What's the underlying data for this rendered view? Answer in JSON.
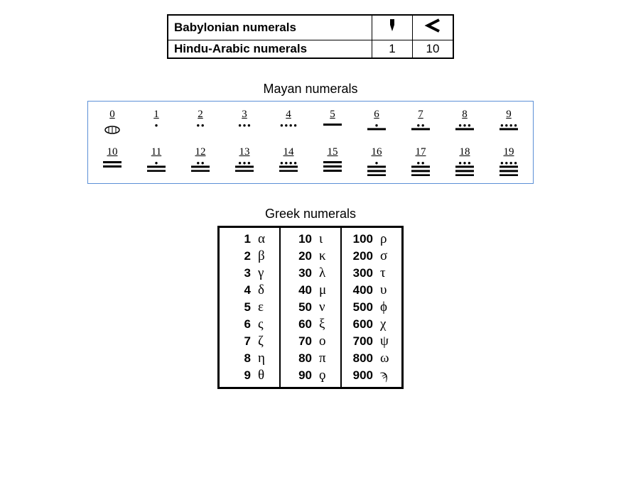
{
  "babylonian": {
    "rows": [
      {
        "label": "Babylonian numerals",
        "c1": "sym1",
        "c2": "sym10"
      },
      {
        "label": "Hindu-Arabic numerals",
        "c1": "1",
        "c2": "10"
      }
    ],
    "border_color": "#000000",
    "label_font_weight": "bold",
    "font_size_label": 17,
    "font_size_symbol": 22
  },
  "mayan": {
    "title": "Mayan numerals",
    "border_color": "#5b8fd6",
    "title_fontsize": 18,
    "number_fontsize": 15,
    "glyph_stroke": "#000000",
    "cells": [
      {
        "n": "0",
        "dots": 0,
        "bars": 0,
        "shell": true
      },
      {
        "n": "1",
        "dots": 1,
        "bars": 0
      },
      {
        "n": "2",
        "dots": 2,
        "bars": 0
      },
      {
        "n": "3",
        "dots": 3,
        "bars": 0
      },
      {
        "n": "4",
        "dots": 4,
        "bars": 0
      },
      {
        "n": "5",
        "dots": 0,
        "bars": 1
      },
      {
        "n": "6",
        "dots": 1,
        "bars": 1
      },
      {
        "n": "7",
        "dots": 2,
        "bars": 1
      },
      {
        "n": "8",
        "dots": 3,
        "bars": 1
      },
      {
        "n": "9",
        "dots": 4,
        "bars": 1
      },
      {
        "n": "10",
        "dots": 0,
        "bars": 2
      },
      {
        "n": "11",
        "dots": 1,
        "bars": 2
      },
      {
        "n": "12",
        "dots": 2,
        "bars": 2
      },
      {
        "n": "13",
        "dots": 3,
        "bars": 2
      },
      {
        "n": "14",
        "dots": 4,
        "bars": 2
      },
      {
        "n": "15",
        "dots": 0,
        "bars": 3
      },
      {
        "n": "16",
        "dots": 1,
        "bars": 3
      },
      {
        "n": "17",
        "dots": 2,
        "bars": 3
      },
      {
        "n": "18",
        "dots": 3,
        "bars": 3
      },
      {
        "n": "19",
        "dots": 4,
        "bars": 3
      }
    ]
  },
  "greek": {
    "title": "Greek numerals",
    "border_color": "#000000",
    "num_font_weight": "bold",
    "num_fontsize": 17,
    "letter_fontsize": 19,
    "columns": [
      [
        {
          "n": "1",
          "g": "α"
        },
        {
          "n": "2",
          "g": "β"
        },
        {
          "n": "3",
          "g": "γ"
        },
        {
          "n": "4",
          "g": "δ"
        },
        {
          "n": "5",
          "g": "ε"
        },
        {
          "n": "6",
          "g": "ς"
        },
        {
          "n": "7",
          "g": "ζ"
        },
        {
          "n": "8",
          "g": "η"
        },
        {
          "n": "9",
          "g": "θ"
        }
      ],
      [
        {
          "n": "10",
          "g": "ι"
        },
        {
          "n": "20",
          "g": "κ"
        },
        {
          "n": "30",
          "g": "λ"
        },
        {
          "n": "40",
          "g": "μ"
        },
        {
          "n": "50",
          "g": "ν"
        },
        {
          "n": "60",
          "g": "ξ"
        },
        {
          "n": "70",
          "g": "ο"
        },
        {
          "n": "80",
          "g": "π"
        },
        {
          "n": "90",
          "g": "ϙ"
        }
      ],
      [
        {
          "n": "100",
          "g": "ρ"
        },
        {
          "n": "200",
          "g": "σ"
        },
        {
          "n": "300",
          "g": "τ"
        },
        {
          "n": "400",
          "g": "υ"
        },
        {
          "n": "500",
          "g": "ϕ"
        },
        {
          "n": "600",
          "g": "χ"
        },
        {
          "n": "700",
          "g": "ψ"
        },
        {
          "n": "800",
          "g": "ω"
        },
        {
          "n": "900",
          "g": "ϡ"
        }
      ]
    ]
  }
}
